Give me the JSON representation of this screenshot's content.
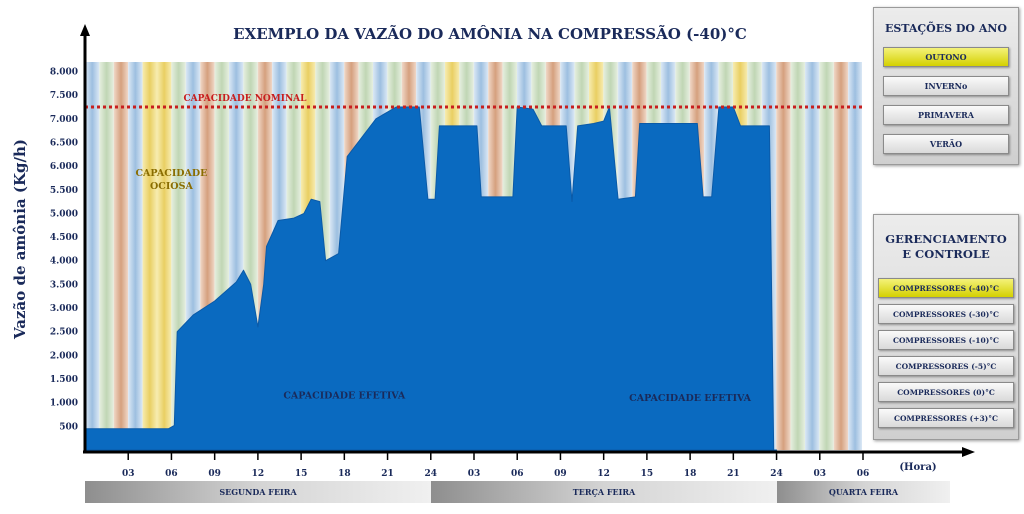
{
  "chart_data": {
    "type": "area",
    "title": "EXEMPLO DA VAZÃO DO AMÔNIA NA COMPRESSÃO (-40)°C",
    "ylabel": "Vazão de amônia (Kg/h)",
    "xlabel": "(Hora)",
    "ylim": [
      0,
      8200
    ],
    "y_ticks": [
      500,
      1000,
      1500,
      2000,
      2500,
      3000,
      3500,
      4000,
      4500,
      5000,
      5500,
      6000,
      6500,
      7000,
      7500,
      8000
    ],
    "y_tick_labels": [
      "500",
      "1.000",
      "1.500",
      "2.000",
      "2.500",
      "3.000",
      "3.500",
      "4.000",
      "4.500",
      "5.000",
      "5.500",
      "6.000",
      "6.500",
      "7.000",
      "7.500",
      "8.000"
    ],
    "x_range": [
      0,
      54
    ],
    "x_ticks": [
      3,
      6,
      9,
      12,
      15,
      18,
      21,
      24,
      27,
      30,
      33,
      36,
      39,
      42,
      45,
      48,
      51,
      54
    ],
    "x_tick_labels": [
      "03",
      "06",
      "09",
      "12",
      "15",
      "18",
      "21",
      "24",
      "03",
      "06",
      "09",
      "12",
      "15",
      "18",
      "21",
      "24",
      "03",
      "06"
    ],
    "days": [
      {
        "label": "SEGUNDA FEIRA",
        "start": 0,
        "end": 24
      },
      {
        "label": "TERÇA FEIRA",
        "start": 24,
        "end": 48
      },
      {
        "label": "QUARTA FEIRA",
        "start": 48,
        "end": 54
      }
    ],
    "nominal_capacity": {
      "value": 7250,
      "label": "CAPACIDADE NOMINAL"
    },
    "annotations": [
      {
        "text": "CAPACIDADE OCIOSA",
        "x": 6,
        "y": 5500,
        "color": "#8a6d00"
      },
      {
        "text": "CAPACIDADE EFETIVA",
        "x": 18,
        "y": 1150,
        "color": "#1a2a5a"
      },
      {
        "text": "CAPACIDADE EFETIVA",
        "x": 42,
        "y": 1100,
        "color": "#1a2a5a"
      }
    ],
    "series": [
      {
        "values": [
          [
            0,
            450
          ],
          [
            5.8,
            450
          ],
          [
            6.2,
            520
          ],
          [
            6.4,
            2500
          ],
          [
            7.5,
            2850
          ],
          [
            9,
            3150
          ],
          [
            10.5,
            3550
          ],
          [
            11,
            3800
          ],
          [
            11.5,
            3500
          ],
          [
            12,
            2600
          ],
          [
            12.4,
            3500
          ],
          [
            12.6,
            4300
          ],
          [
            13.4,
            4850
          ],
          [
            14.5,
            4900
          ],
          [
            15.2,
            5000
          ],
          [
            15.7,
            5300
          ],
          [
            16.3,
            5250
          ],
          [
            16.7,
            4000
          ],
          [
            17.6,
            4150
          ],
          [
            18.2,
            6200
          ],
          [
            19.2,
            6600
          ],
          [
            20.2,
            7000
          ],
          [
            21.6,
            7250
          ],
          [
            23.2,
            7250
          ],
          [
            23.8,
            5300
          ],
          [
            24.3,
            5300
          ],
          [
            24.6,
            6850
          ],
          [
            27.2,
            6850
          ],
          [
            27.5,
            5350
          ],
          [
            29.7,
            5350
          ],
          [
            30,
            7250
          ],
          [
            31.1,
            7200
          ],
          [
            31.7,
            6850
          ],
          [
            33.4,
            6850
          ],
          [
            33.8,
            5250
          ],
          [
            34.2,
            6850
          ],
          [
            35.3,
            6900
          ],
          [
            36,
            6950
          ],
          [
            36.4,
            7250
          ],
          [
            37,
            5300
          ],
          [
            38.2,
            5350
          ],
          [
            38.5,
            6900
          ],
          [
            42.5,
            6900
          ],
          [
            42.9,
            5350
          ],
          [
            43.5,
            5350
          ],
          [
            44,
            7250
          ],
          [
            45,
            7250
          ],
          [
            45.5,
            6850
          ],
          [
            47.5,
            6850
          ],
          [
            47.8,
            0
          ],
          [
            48,
            0
          ]
        ]
      }
    ],
    "colors": {
      "area": "#0a6ac0",
      "nominal_line": "#c81e1e",
      "stripe_summer": "#eed77a",
      "stripe_winter": "#a9c7e5",
      "stripe_autumn": "#d9a98a",
      "stripe_spring": "#c9dcc0",
      "axis": "#1a2a5a"
    }
  },
  "seasons_panel": {
    "title": "ESTAÇÕES DO ANO",
    "buttons": [
      {
        "label": "OUTONO",
        "active": true
      },
      {
        "label": "INVERNo",
        "active": false
      },
      {
        "label": "PRIMAVERA",
        "active": false
      },
      {
        "label": "VERÃO",
        "active": false
      }
    ]
  },
  "management_panel": {
    "title_line1": "GERENCIAMENTO",
    "title_line2": "E CONTROLE",
    "buttons": [
      {
        "label": "COMPRESSORES (-40)°C",
        "active": true
      },
      {
        "label": "COMPRESSORES (-30)°C",
        "active": false
      },
      {
        "label": "COMPRESSORES (-10)°C",
        "active": false
      },
      {
        "label": "COMPRESSORES (-5)°C",
        "active": false
      },
      {
        "label": "COMPRESSORES (0)°C",
        "active": false
      },
      {
        "label": "COMPRESSORES (+3)°C",
        "active": false
      }
    ]
  }
}
